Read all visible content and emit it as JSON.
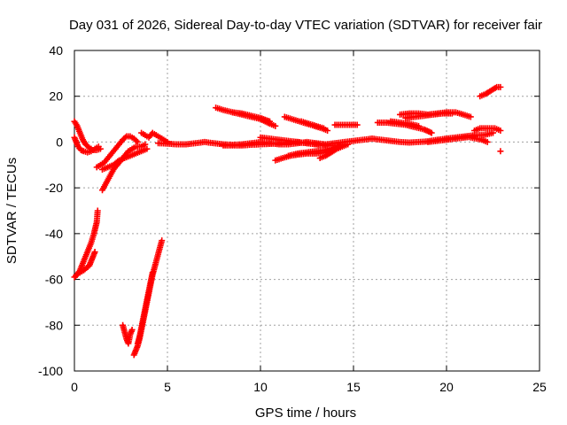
{
  "chart_data": {
    "type": "scatter",
    "title": "Day 031 of 2026, Sidereal Day-to-day VTEC variation (SDTVAR) for receiver fair",
    "xlabel": "GPS time / hours",
    "ylabel": "SDTVAR / TECUs",
    "xlim": [
      0,
      25
    ],
    "ylim": [
      -100,
      40
    ],
    "xticks": [
      0,
      5,
      10,
      15,
      20,
      25
    ],
    "yticks": [
      -100,
      -80,
      -60,
      -40,
      -20,
      0,
      20,
      40
    ],
    "grid": true,
    "marker": "plus",
    "marker_color": "#ff0000",
    "series": [
      {
        "values": [
          [
            0.0,
            2
          ],
          [
            0.1,
            0
          ],
          [
            0.2,
            -2
          ],
          [
            0.35,
            -3.5
          ],
          [
            0.5,
            -4
          ],
          [
            0.7,
            -4.5
          ],
          [
            0.9,
            -4
          ],
          [
            1.1,
            -3
          ],
          [
            1.3,
            -2
          ]
        ]
      },
      {
        "values": [
          [
            0.0,
            9
          ],
          [
            0.15,
            7
          ],
          [
            0.3,
            4
          ],
          [
            0.45,
            1
          ],
          [
            0.6,
            -1
          ],
          [
            0.8,
            -2.5
          ],
          [
            1.0,
            -3.5
          ],
          [
            1.2,
            -3.5
          ],
          [
            1.4,
            -3
          ]
        ]
      },
      {
        "values": [
          [
            0.0,
            -59
          ],
          [
            0.15,
            -58
          ],
          [
            0.3,
            -56
          ],
          [
            0.45,
            -53
          ],
          [
            0.6,
            -50
          ],
          [
            0.75,
            -47
          ],
          [
            0.9,
            -44
          ],
          [
            1.05,
            -40
          ],
          [
            1.2,
            -35
          ],
          [
            1.25,
            -30
          ]
        ]
      },
      {
        "values": [
          [
            0.1,
            -58
          ],
          [
            0.3,
            -57
          ],
          [
            0.5,
            -56
          ],
          [
            0.65,
            -55
          ],
          [
            0.8,
            -54
          ],
          [
            0.9,
            -52
          ],
          [
            1.0,
            -50
          ],
          [
            1.1,
            -48
          ]
        ]
      },
      {
        "values": [
          [
            1.2,
            -11
          ],
          [
            1.4,
            -10
          ],
          [
            1.6,
            -9
          ],
          [
            1.8,
            -7
          ],
          [
            2.0,
            -5
          ],
          [
            2.2,
            -3
          ],
          [
            2.4,
            -1
          ],
          [
            2.6,
            1
          ],
          [
            2.8,
            2.5
          ],
          [
            3.0,
            2.5
          ],
          [
            3.2,
            1.5
          ],
          [
            3.4,
            0
          ]
        ]
      },
      {
        "values": [
          [
            1.5,
            -21
          ],
          [
            1.7,
            -18
          ],
          [
            1.9,
            -15
          ],
          [
            2.1,
            -12
          ],
          [
            2.3,
            -10
          ],
          [
            2.5,
            -8
          ],
          [
            2.7,
            -6
          ],
          [
            2.9,
            -4
          ],
          [
            3.1,
            -3
          ],
          [
            3.3,
            -2
          ],
          [
            3.6,
            -2
          ],
          [
            3.8,
            -1
          ]
        ]
      },
      {
        "values": [
          [
            1.5,
            -12
          ],
          [
            1.8,
            -11
          ],
          [
            2.1,
            -10
          ],
          [
            2.4,
            -8
          ],
          [
            2.7,
            -7
          ],
          [
            3.0,
            -6
          ],
          [
            3.3,
            -5
          ],
          [
            3.6,
            -4
          ],
          [
            3.9,
            -3
          ]
        ]
      },
      {
        "values": [
          [
            3.6,
            4
          ],
          [
            3.8,
            3
          ],
          [
            4.0,
            2
          ],
          [
            4.2,
            4
          ],
          [
            4.4,
            3
          ],
          [
            4.6,
            2
          ],
          [
            4.8,
            1
          ],
          [
            5.0,
            0
          ]
        ]
      },
      {
        "values": [
          [
            2.6,
            -80
          ],
          [
            2.7,
            -83
          ],
          [
            2.8,
            -86
          ],
          [
            2.9,
            -88
          ],
          [
            3.0,
            -84
          ],
          [
            3.1,
            -82
          ]
        ]
      },
      {
        "values": [
          [
            3.2,
            -93
          ],
          [
            3.3,
            -91
          ],
          [
            3.4,
            -89
          ],
          [
            3.5,
            -86
          ],
          [
            3.6,
            -82
          ],
          [
            3.7,
            -78
          ],
          [
            3.8,
            -74
          ],
          [
            3.9,
            -70
          ],
          [
            4.0,
            -66
          ],
          [
            4.1,
            -62
          ],
          [
            4.2,
            -58
          ],
          [
            4.3,
            -55
          ],
          [
            4.4,
            -52
          ],
          [
            4.5,
            -49
          ],
          [
            4.6,
            -46
          ],
          [
            4.7,
            -43
          ]
        ]
      },
      {
        "values": [
          [
            3.4,
            -88
          ],
          [
            3.5,
            -85
          ],
          [
            3.6,
            -81
          ],
          [
            3.7,
            -77
          ],
          [
            3.8,
            -73
          ],
          [
            3.9,
            -69
          ],
          [
            4.0,
            -65
          ],
          [
            4.1,
            -61
          ],
          [
            4.2,
            -57
          ]
        ]
      },
      {
        "values": [
          [
            4.5,
            -0.5
          ],
          [
            5.0,
            -0.7
          ],
          [
            5.5,
            -1
          ],
          [
            6.0,
            -1
          ],
          [
            6.5,
            -0.5
          ],
          [
            7.0,
            0
          ],
          [
            7.5,
            -0.5
          ],
          [
            8.0,
            -1
          ],
          [
            8.5,
            -1.2
          ],
          [
            9.0,
            -1
          ],
          [
            9.5,
            -0.5
          ],
          [
            10.0,
            0
          ],
          [
            10.5,
            -0.5
          ],
          [
            11.0,
            -1
          ],
          [
            11.5,
            -1
          ],
          [
            12.0,
            -0.5
          ],
          [
            12.5,
            0
          ],
          [
            13.0,
            -0.5
          ],
          [
            13.5,
            -1
          ],
          [
            14.0,
            -0.5
          ],
          [
            14.5,
            0
          ],
          [
            15.0,
            0.5
          ],
          [
            15.5,
            1
          ],
          [
            16.0,
            1.5
          ],
          [
            16.5,
            1
          ],
          [
            17.0,
            0.5
          ],
          [
            17.5,
            0
          ],
          [
            18.0,
            -0.2
          ],
          [
            18.5,
            0
          ],
          [
            19.0,
            0.3
          ],
          [
            19.5,
            1
          ],
          [
            20.0,
            1.5
          ],
          [
            20.5,
            2
          ],
          [
            21.0,
            2.5
          ],
          [
            21.5,
            3
          ],
          [
            22.0,
            3
          ],
          [
            22.5,
            4
          ]
        ]
      },
      {
        "values": [
          [
            8.0,
            -1.5
          ],
          [
            8.5,
            -1.5
          ],
          [
            9.0,
            -1.5
          ],
          [
            9.5,
            -1.2
          ],
          [
            10.0,
            -1
          ],
          [
            10.5,
            -0.8
          ],
          [
            11.0,
            -0.5
          ],
          [
            11.5,
            -0.2
          ],
          [
            12.0,
            0
          ],
          [
            12.5,
            -0.5
          ],
          [
            13.0,
            -1
          ],
          [
            13.5,
            -1.5
          ]
        ]
      },
      {
        "values": [
          [
            10.0,
            2
          ],
          [
            10.5,
            1.5
          ],
          [
            11.0,
            1
          ],
          [
            11.5,
            0.5
          ],
          [
            12.0,
            0
          ],
          [
            12.5,
            -0.5
          ],
          [
            13.0,
            -1
          ],
          [
            13.5,
            -1.5
          ],
          [
            14.0,
            -1.5
          ]
        ]
      },
      {
        "values": [
          [
            7.6,
            15
          ],
          [
            8.0,
            14
          ],
          [
            8.5,
            13
          ],
          [
            9.0,
            12
          ],
          [
            9.5,
            11
          ],
          [
            10.0,
            10
          ],
          [
            10.5,
            8
          ],
          [
            10.8,
            7
          ]
        ]
      },
      {
        "values": [
          [
            8.5,
            13
          ],
          [
            9.0,
            12.5
          ],
          [
            9.5,
            11.5
          ],
          [
            10.0,
            10.5
          ],
          [
            10.5,
            9
          ]
        ]
      },
      {
        "values": [
          [
            11.3,
            11
          ],
          [
            11.7,
            10
          ],
          [
            12.1,
            9
          ],
          [
            12.5,
            8
          ],
          [
            12.9,
            7
          ],
          [
            13.3,
            6
          ],
          [
            13.6,
            5
          ]
        ]
      },
      {
        "values": [
          [
            12.2,
            9
          ],
          [
            12.6,
            8
          ],
          [
            13.0,
            7
          ],
          [
            13.4,
            6
          ]
        ]
      },
      {
        "values": [
          [
            10.8,
            -8
          ],
          [
            11.2,
            -7
          ],
          [
            11.6,
            -6
          ],
          [
            12.0,
            -5.5
          ],
          [
            12.5,
            -5
          ],
          [
            13.0,
            -5
          ],
          [
            13.5,
            -4.5
          ],
          [
            14.0,
            -3
          ],
          [
            14.3,
            -1
          ]
        ]
      },
      {
        "values": [
          [
            11.5,
            -6
          ],
          [
            12.0,
            -5
          ],
          [
            12.5,
            -4.5
          ],
          [
            13.0,
            -4
          ],
          [
            13.5,
            -3.5
          ],
          [
            14.0,
            -2.5
          ]
        ]
      },
      {
        "values": [
          [
            13.2,
            -7
          ],
          [
            13.5,
            -6
          ],
          [
            13.8,
            -4.5
          ],
          [
            14.1,
            -3
          ],
          [
            14.4,
            -2
          ],
          [
            14.7,
            -1
          ]
        ]
      },
      {
        "values": [
          [
            14.0,
            7.5
          ],
          [
            14.4,
            7.5
          ],
          [
            14.8,
            7.5
          ],
          [
            15.2,
            7.5
          ]
        ]
      },
      {
        "values": [
          [
            16.3,
            8.5
          ],
          [
            16.8,
            8.5
          ],
          [
            17.3,
            8
          ],
          [
            17.8,
            7.5
          ],
          [
            18.3,
            6.5
          ],
          [
            18.8,
            5.5
          ],
          [
            19.2,
            4
          ]
        ]
      },
      {
        "values": [
          [
            17.0,
            9
          ],
          [
            17.5,
            8.5
          ],
          [
            18.0,
            8
          ],
          [
            18.5,
            7
          ]
        ]
      },
      {
        "values": [
          [
            17.5,
            12
          ],
          [
            18.0,
            12.5
          ],
          [
            18.5,
            12.5
          ],
          [
            19.0,
            12
          ],
          [
            19.5,
            12.5
          ],
          [
            20.0,
            13
          ],
          [
            20.5,
            13
          ],
          [
            20.9,
            12
          ],
          [
            21.3,
            11
          ]
        ]
      },
      {
        "values": [
          [
            17.8,
            10.5
          ],
          [
            18.3,
            11
          ],
          [
            18.8,
            11.5
          ],
          [
            19.3,
            12
          ],
          [
            19.8,
            12.5
          ],
          [
            20.3,
            12.5
          ]
        ]
      },
      {
        "values": [
          [
            19.0,
            0
          ],
          [
            19.5,
            0.5
          ],
          [
            20.0,
            1
          ],
          [
            20.5,
            1.5
          ],
          [
            21.0,
            2
          ],
          [
            21.5,
            2.5
          ]
        ]
      },
      {
        "values": [
          [
            21.5,
            5
          ],
          [
            21.8,
            6
          ],
          [
            22.2,
            6
          ],
          [
            22.6,
            6
          ],
          [
            22.9,
            5
          ]
        ]
      },
      {
        "values": [
          [
            21.3,
            2
          ],
          [
            21.6,
            1.5
          ],
          [
            21.9,
            1
          ],
          [
            22.2,
            0
          ]
        ]
      },
      {
        "values": [
          [
            21.8,
            20
          ],
          [
            22.1,
            21
          ],
          [
            22.4,
            22.5
          ],
          [
            22.7,
            24
          ],
          [
            22.9,
            24
          ]
        ]
      },
      {
        "values": [
          [
            22.9,
            -4
          ]
        ]
      }
    ]
  }
}
